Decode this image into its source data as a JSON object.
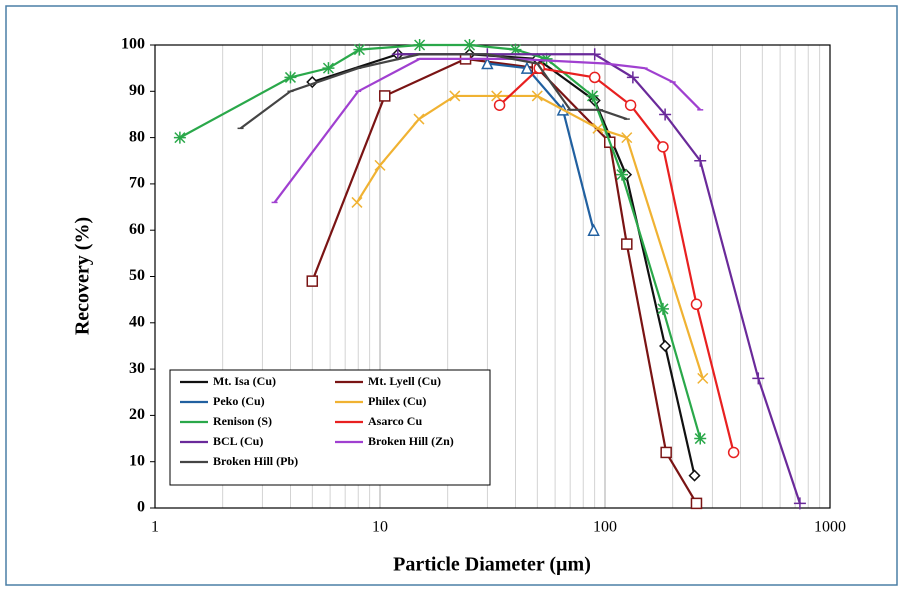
{
  "chart_data": {
    "type": "line",
    "x_label": "Particle Diameter (µm)",
    "y_label": "Recovery (%)",
    "xscale": "log",
    "xlim": [
      1,
      1000
    ],
    "xticks": [
      1,
      10,
      100,
      1000
    ],
    "ylim": [
      0,
      100
    ],
    "yticks": [
      0,
      10,
      20,
      30,
      40,
      50,
      60,
      70,
      80,
      90,
      100
    ],
    "minor_grid": true,
    "legend": "lower left",
    "series": [
      {
        "name": "Mt. Isa (Cu)",
        "color": "#111111",
        "marker": "diamond",
        "x": [
          5,
          12,
          25,
          50,
          90,
          124,
          185,
          250
        ],
        "values": [
          92,
          98,
          98,
          97,
          88,
          72,
          35,
          7
        ]
      },
      {
        "name": "Mt. Lyell (Cu)",
        "color": "#7a1414",
        "marker": "square",
        "x": [
          5,
          10.5,
          24,
          50,
          105,
          125,
          187,
          255
        ],
        "values": [
          49,
          89,
          97,
          95,
          79,
          57,
          12,
          1
        ]
      },
      {
        "name": "Peko (Cu)",
        "color": "#2160a0",
        "marker": "triangle",
        "x": [
          30,
          45,
          65,
          89
        ],
        "values": [
          96,
          95,
          86,
          60
        ]
      },
      {
        "name": "Philex (Cu)",
        "color": "#f0b232",
        "marker": "x",
        "x": [
          7.9,
          10,
          14.9,
          21.5,
          33,
          50,
          93,
          125,
          272
        ],
        "values": [
          66,
          74,
          84,
          89,
          89,
          89,
          82,
          80,
          28
        ]
      },
      {
        "name": "Renison (S)",
        "color": "#2aa84a",
        "marker": "star",
        "x": [
          1.29,
          4,
          5.9,
          8.1,
          15,
          25,
          40,
          55,
          88,
          119,
          181,
          265
        ],
        "values": [
          80,
          93,
          95,
          99,
          100,
          100,
          99,
          97,
          89,
          72,
          43,
          15
        ]
      },
      {
        "name": "Asarco Cu",
        "color": "#e82020",
        "marker": "circle",
        "x": [
          34,
          51,
          90,
          130,
          181,
          255,
          373
        ],
        "values": [
          87,
          95,
          93,
          87,
          78,
          44,
          12
        ]
      },
      {
        "name": "BCL (Cu)",
        "color": "#6a2a9a",
        "marker": "plus",
        "x": [
          12,
          30,
          90,
          133,
          185,
          265,
          480,
          735
        ],
        "values": [
          98,
          98,
          98,
          93,
          85,
          75,
          28,
          1
        ]
      },
      {
        "name": "Broken Hill (Zn)",
        "color": "#a040d0",
        "marker": "none",
        "x": [
          3.4,
          8,
          15,
          40,
          100,
          150,
          200,
          265
        ],
        "values": [
          66,
          90,
          97,
          97,
          96,
          95,
          92,
          86
        ]
      },
      {
        "name": "Broken Hill (Pb)",
        "color": "#444444",
        "marker": "dash",
        "x": [
          2.4,
          4,
          8,
          15,
          30,
          50,
          70,
          95,
          125
        ],
        "values": [
          82,
          90,
          95,
          98,
          98,
          96,
          86,
          86,
          84
        ]
      }
    ]
  }
}
